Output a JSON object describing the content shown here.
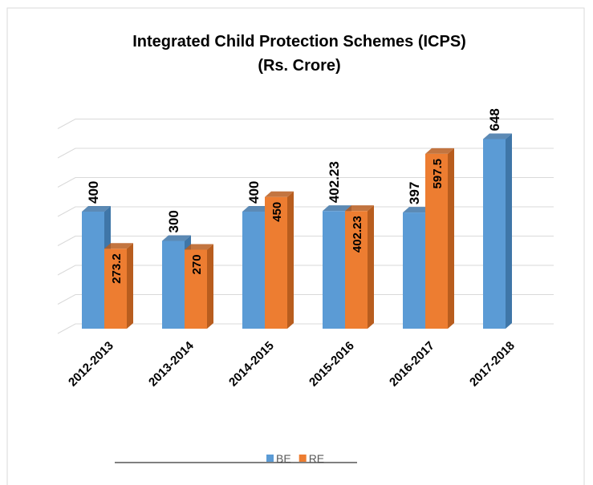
{
  "chart_data": {
    "type": "bar3d",
    "title": "Integrated Child Protection Schemes (ICPS)",
    "subtitle": "(Rs. Crore)",
    "categories": [
      "2012-2013",
      "2013-2014",
      "2014-2015",
      "2015-2016",
      "2016-2017",
      "2017-2018"
    ],
    "series": [
      {
        "name": "BE",
        "color": "#5b9bd5",
        "side": "#3f76a8",
        "values": [
          400,
          300,
          400,
          402.23,
          397,
          648
        ]
      },
      {
        "name": "RE",
        "color": "#ed7d31",
        "side": "#b85d1e",
        "values": [
          273.2,
          270,
          450,
          402.23,
          597.5,
          null
        ]
      }
    ],
    "ylim": [
      0,
      700
    ],
    "yticks": [
      0,
      100,
      200,
      300,
      400,
      500,
      600,
      700
    ],
    "grid": true,
    "legend": "bottom"
  }
}
